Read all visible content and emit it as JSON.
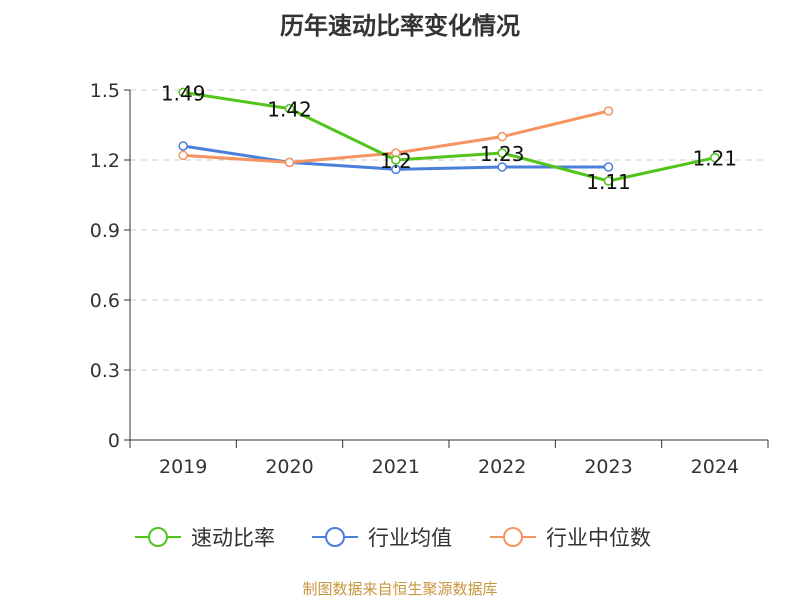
{
  "chart_data": {
    "type": "line",
    "title": "历年速动比率变化情况",
    "categories": [
      "2019",
      "2020",
      "2021",
      "2022",
      "2023",
      "2024"
    ],
    "ylim": [
      0,
      1.5
    ],
    "yticks": [
      "0",
      "0.3",
      "0.6",
      "0.9",
      "1.2",
      "1.5"
    ],
    "grid": true,
    "legend_position": "bottom",
    "series": [
      {
        "name": "速动比率",
        "color": "#52c41a",
        "values": [
          1.49,
          1.42,
          1.2,
          1.23,
          1.11,
          1.21
        ],
        "labels": [
          "1.49",
          "1.42",
          "1.2",
          "1.23",
          "1.11",
          "1.21"
        ]
      },
      {
        "name": "行业均值",
        "color": "#4a7fdb",
        "values": [
          1.26,
          1.19,
          1.16,
          1.17,
          1.17,
          null
        ]
      },
      {
        "name": "行业中位数",
        "color": "#f59361",
        "values": [
          1.22,
          1.19,
          1.23,
          1.3,
          1.41,
          null
        ]
      }
    ]
  },
  "source": "制图数据来自恒生聚源数据库"
}
